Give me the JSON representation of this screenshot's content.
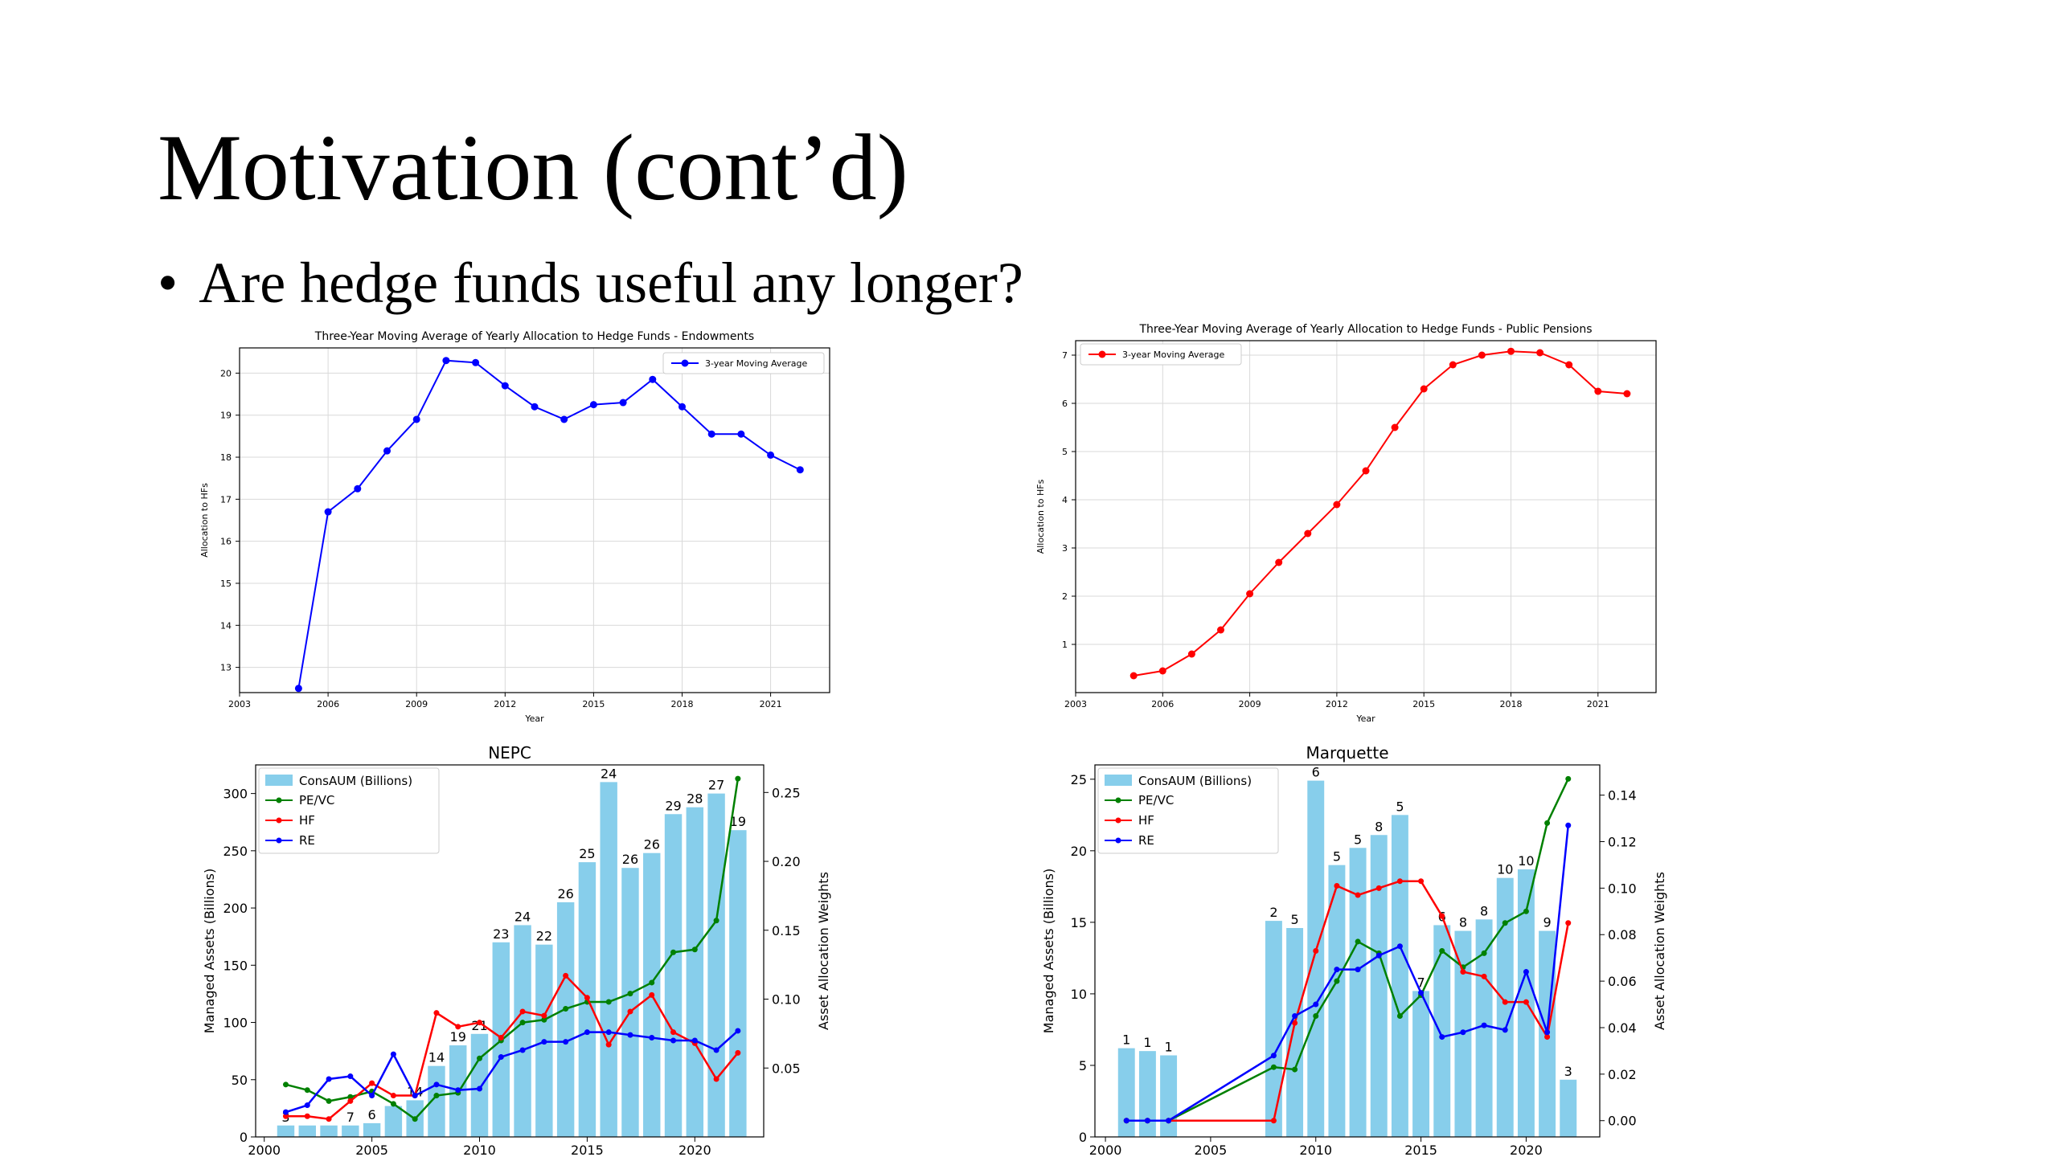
{
  "slide": {
    "title": "Motivation (cont’d)",
    "bullet": "Are hedge funds useful any longer?"
  },
  "colors": {
    "bar": "#87ceeb",
    "blue": "#0000ff",
    "red": "#ff0000",
    "green": "#008000",
    "grid": "#d9d9d9"
  },
  "chart_data": [
    {
      "id": "endowments",
      "type": "line",
      "title": "Three-Year Moving Average of Yearly Allocation to Hedge Funds - Endowments",
      "xlabel": "Year",
      "ylabel": "Allocation to HFs",
      "xlim": [
        2003,
        2023
      ],
      "ylim": [
        12.4,
        20.6
      ],
      "xticks": [
        2003,
        2006,
        2009,
        2012,
        2015,
        2018,
        2021
      ],
      "yticks": [
        13,
        14,
        15,
        16,
        17,
        18,
        19,
        20
      ],
      "grid": true,
      "legend": "top-right",
      "series": [
        {
          "name": "3-year Moving Average",
          "color": "#0000ff",
          "x": [
            2005,
            2006,
            2007,
            2008,
            2009,
            2010,
            2011,
            2012,
            2013,
            2014,
            2015,
            2016,
            2017,
            2018,
            2019,
            2020,
            2021,
            2022
          ],
          "values": [
            12.5,
            16.7,
            17.25,
            18.15,
            18.9,
            20.3,
            20.25,
            19.7,
            19.2,
            18.9,
            19.25,
            19.3,
            19.85,
            19.2,
            18.55,
            18.55,
            18.05,
            17.7
          ]
        }
      ]
    },
    {
      "id": "pensions",
      "type": "line",
      "title": "Three-Year Moving Average of Yearly Allocation to Hedge Funds - Public Pensions",
      "xlabel": "Year",
      "ylabel": "Allocation to HFs",
      "xlim": [
        2003,
        2023
      ],
      "ylim": [
        0.0,
        7.3
      ],
      "xticks": [
        2003,
        2006,
        2009,
        2012,
        2015,
        2018,
        2021
      ],
      "yticks": [
        1,
        2,
        3,
        4,
        5,
        6,
        7
      ],
      "grid": true,
      "legend": "top-left",
      "series": [
        {
          "name": "3-year Moving Average",
          "color": "#ff0000",
          "x": [
            2005,
            2006,
            2007,
            2008,
            2009,
            2010,
            2011,
            2012,
            2013,
            2014,
            2015,
            2016,
            2017,
            2018,
            2019,
            2020,
            2021,
            2022
          ],
          "values": [
            0.35,
            0.45,
            0.8,
            1.3,
            2.05,
            2.7,
            3.3,
            3.9,
            4.6,
            5.5,
            6.3,
            6.8,
            7.0,
            7.08,
            7.05,
            6.8,
            6.25,
            6.2
          ]
        }
      ]
    },
    {
      "id": "nepc",
      "type": "bar",
      "title": "NEPC",
      "ylabel": "Managed Assets (Billions)",
      "y2label": "Asset Allocation Weights",
      "xlim": [
        1999.6,
        2023.2
      ],
      "ylim": [
        0,
        325
      ],
      "y2lim": [
        0,
        0.27
      ],
      "xticks": [
        2000,
        2005,
        2010,
        2015,
        2020
      ],
      "yticks": [
        0,
        50,
        100,
        150,
        200,
        250,
        300
      ],
      "y2ticks": [
        0.05,
        0.1,
        0.15,
        0.2,
        0.25
      ],
      "y2ticklabels": [
        "0.05",
        "0.10",
        "0.15",
        "0.20",
        "0.25"
      ],
      "legend": "top-left",
      "bars": {
        "name": "ConsAUM (Billions)",
        "x": [
          2001,
          2002,
          2003,
          2004,
          2005,
          2006,
          2007,
          2008,
          2009,
          2010,
          2011,
          2012,
          2013,
          2014,
          2015,
          2016,
          2017,
          2018,
          2019,
          2020,
          2021,
          2022
        ],
        "values": [
          10,
          10,
          10,
          10,
          12,
          27,
          32,
          62,
          80,
          90,
          170,
          185,
          168,
          205,
          240,
          310,
          235,
          248,
          282,
          288,
          300,
          268
        ],
        "labels": [
          "3",
          "",
          "",
          "7",
          "6",
          "",
          "14",
          "14",
          "19",
          "21",
          "23",
          "24",
          "22",
          "26",
          "25",
          "24",
          "26",
          "26",
          "29",
          "28",
          "27",
          "19"
        ]
      },
      "series": [
        {
          "name": "PE/VC",
          "color": "#008000",
          "x": [
            2001,
            2002,
            2003,
            2004,
            2005,
            2006,
            2007,
            2008,
            2009,
            2010,
            2011,
            2012,
            2013,
            2014,
            2015,
            2016,
            2017,
            2018,
            2019,
            2020,
            2021,
            2022
          ],
          "values": [
            0.038,
            0.034,
            0.026,
            0.029,
            0.033,
            0.024,
            0.013,
            0.03,
            0.032,
            0.057,
            0.07,
            0.083,
            0.085,
            0.093,
            0.098,
            0.098,
            0.104,
            0.112,
            0.134,
            0.136,
            0.157,
            0.26
          ]
        },
        {
          "name": "HF",
          "color": "#ff0000",
          "x": [
            2001,
            2002,
            2003,
            2004,
            2005,
            2006,
            2007,
            2008,
            2009,
            2010,
            2011,
            2012,
            2013,
            2014,
            2015,
            2016,
            2017,
            2018,
            2019,
            2020,
            2021,
            2022
          ],
          "values": [
            0.015,
            0.015,
            0.013,
            0.026,
            0.039,
            0.03,
            0.03,
            0.09,
            0.08,
            0.083,
            0.072,
            0.091,
            0.088,
            0.117,
            0.101,
            0.067,
            0.091,
            0.103,
            0.076,
            0.068,
            0.042,
            0.061
          ]
        },
        {
          "name": "RE",
          "color": "#0000ff",
          "x": [
            2001,
            2002,
            2003,
            2004,
            2005,
            2006,
            2007,
            2008,
            2009,
            2010,
            2011,
            2012,
            2013,
            2014,
            2015,
            2016,
            2017,
            2018,
            2019,
            2020,
            2021,
            2022
          ],
          "values": [
            0.018,
            0.023,
            0.042,
            0.044,
            0.03,
            0.06,
            0.03,
            0.038,
            0.034,
            0.035,
            0.058,
            0.063,
            0.069,
            0.069,
            0.076,
            0.076,
            0.074,
            0.072,
            0.07,
            0.07,
            0.063,
            0.077
          ]
        }
      ]
    },
    {
      "id": "marquette",
      "type": "bar",
      "title": "Marquette",
      "ylabel": "Managed Assets (Billions)",
      "y2label": "Asset Allocation Weights",
      "xlim": [
        1999.5,
        2023.5
      ],
      "ylim": [
        0,
        26
      ],
      "y2lim": [
        -0.007,
        0.153
      ],
      "xticks": [
        2000,
        2005,
        2010,
        2015,
        2020
      ],
      "yticks": [
        0,
        5,
        10,
        15,
        20,
        25
      ],
      "y2ticks": [
        0.0,
        0.02,
        0.04,
        0.06,
        0.08,
        0.1,
        0.12,
        0.14
      ],
      "y2ticklabels": [
        "0.00",
        "0.02",
        "0.04",
        "0.06",
        "0.08",
        "0.10",
        "0.12",
        "0.14"
      ],
      "legend": "top-left",
      "bars": {
        "name": "ConsAUM (Billions)",
        "x": [
          2001,
          2002,
          2003,
          2008,
          2009,
          2010,
          2011,
          2012,
          2013,
          2014,
          2015,
          2016,
          2017,
          2018,
          2019,
          2020,
          2021,
          2022
        ],
        "values": [
          6.2,
          6.0,
          5.7,
          15.1,
          14.6,
          24.9,
          19.0,
          20.2,
          21.1,
          22.5,
          10.2,
          14.8,
          14.4,
          15.2,
          18.1,
          18.7,
          14.4,
          4.0
        ],
        "labels": [
          "1",
          "1",
          "1",
          "2",
          "5",
          "6",
          "5",
          "5",
          "8",
          "5",
          "7",
          "6",
          "8",
          "8",
          "10",
          "10",
          "9",
          "3"
        ]
      },
      "series": [
        {
          "name": "PE/VC",
          "color": "#008000",
          "x": [
            2001,
            2002,
            2003,
            2008,
            2009,
            2010,
            2011,
            2012,
            2013,
            2014,
            2015,
            2016,
            2017,
            2018,
            2019,
            2020,
            2021,
            2022
          ],
          "values": [
            0.0,
            0.0,
            0.0,
            0.023,
            0.022,
            0.045,
            0.06,
            0.077,
            0.072,
            0.045,
            0.054,
            0.073,
            0.066,
            0.072,
            0.085,
            0.09,
            0.128,
            0.147
          ]
        },
        {
          "name": "HF",
          "color": "#ff0000",
          "x": [
            2001,
            2002,
            2003,
            2008,
            2009,
            2010,
            2011,
            2012,
            2013,
            2014,
            2015,
            2016,
            2017,
            2018,
            2019,
            2020,
            2021,
            2022
          ],
          "values": [
            0.0,
            0.0,
            0.0,
            0.0,
            0.042,
            0.073,
            0.101,
            0.097,
            0.1,
            0.103,
            0.103,
            0.088,
            0.064,
            0.062,
            0.051,
            0.051,
            0.036,
            0.085
          ]
        },
        {
          "name": "RE",
          "color": "#0000ff",
          "x": [
            2001,
            2002,
            2003,
            2008,
            2009,
            2010,
            2011,
            2012,
            2013,
            2014,
            2015,
            2016,
            2017,
            2018,
            2019,
            2020,
            2021,
            2022
          ],
          "values": [
            0.0,
            0.0,
            0.0,
            0.028,
            0.045,
            0.05,
            0.065,
            0.065,
            0.071,
            0.075,
            0.055,
            0.036,
            0.038,
            0.041,
            0.039,
            0.064,
            0.038,
            0.127
          ]
        }
      ]
    }
  ]
}
